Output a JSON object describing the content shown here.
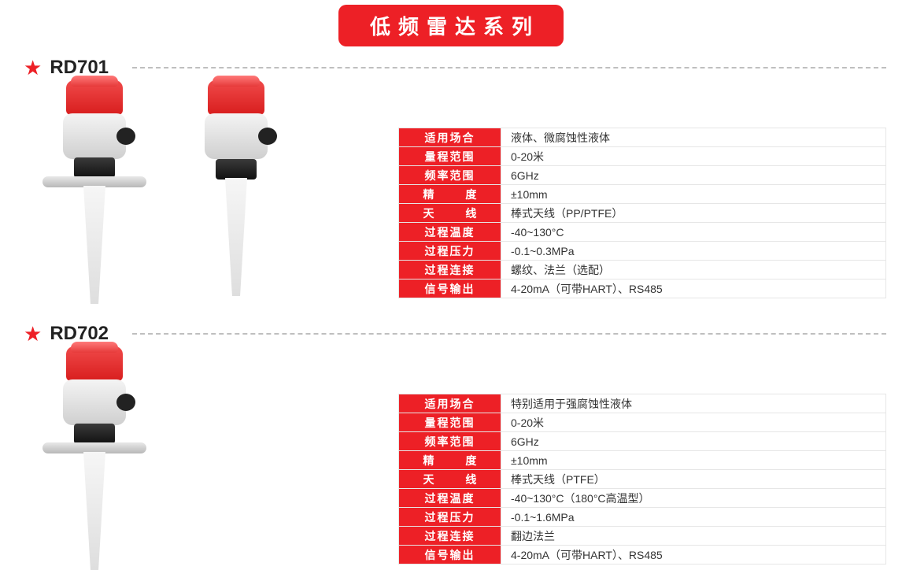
{
  "series_title": "低频雷达系列",
  "colors": {
    "brand_red": "#ed2026",
    "text": "#333333",
    "dash": "#bfbfbf"
  },
  "products": [
    {
      "model": "RD701",
      "images": [
        "flange",
        "thread"
      ],
      "specs": [
        {
          "label": "适用场合",
          "value": "液体、微腐蚀性液体"
        },
        {
          "label": "量程范围",
          "value": "0-20米"
        },
        {
          "label": "频率范围",
          "value": "6GHz"
        },
        {
          "label": "精  度",
          "value": "±10mm",
          "spaced": true
        },
        {
          "label": "天  线",
          "value": "棒式天线（PP/PTFE）",
          "spaced": true
        },
        {
          "label": "过程温度",
          "value": "-40~130°C"
        },
        {
          "label": "过程压力",
          "value": "-0.1~0.3MPa"
        },
        {
          "label": "过程连接",
          "value": "螺纹、法兰（选配）"
        },
        {
          "label": "信号输出",
          "value": "4-20mA（可带HART）、RS485"
        }
      ]
    },
    {
      "model": "RD702",
      "images": [
        "flange"
      ],
      "specs": [
        {
          "label": "适用场合",
          "value": "特别适用于强腐蚀性液体"
        },
        {
          "label": "量程范围",
          "value": "0-20米"
        },
        {
          "label": "频率范围",
          "value": "6GHz"
        },
        {
          "label": "精  度",
          "value": "±10mm",
          "spaced": true
        },
        {
          "label": "天  线",
          "value": "棒式天线（PTFE）",
          "spaced": true
        },
        {
          "label": "过程温度",
          "value": "-40~130°C（180°C高温型）"
        },
        {
          "label": "过程压力",
          "value": "-0.1~1.6MPa"
        },
        {
          "label": "过程连接",
          "value": "翻边法兰"
        },
        {
          "label": "信号输出",
          "value": "4-20mA（可带HART）、RS485"
        }
      ]
    }
  ]
}
